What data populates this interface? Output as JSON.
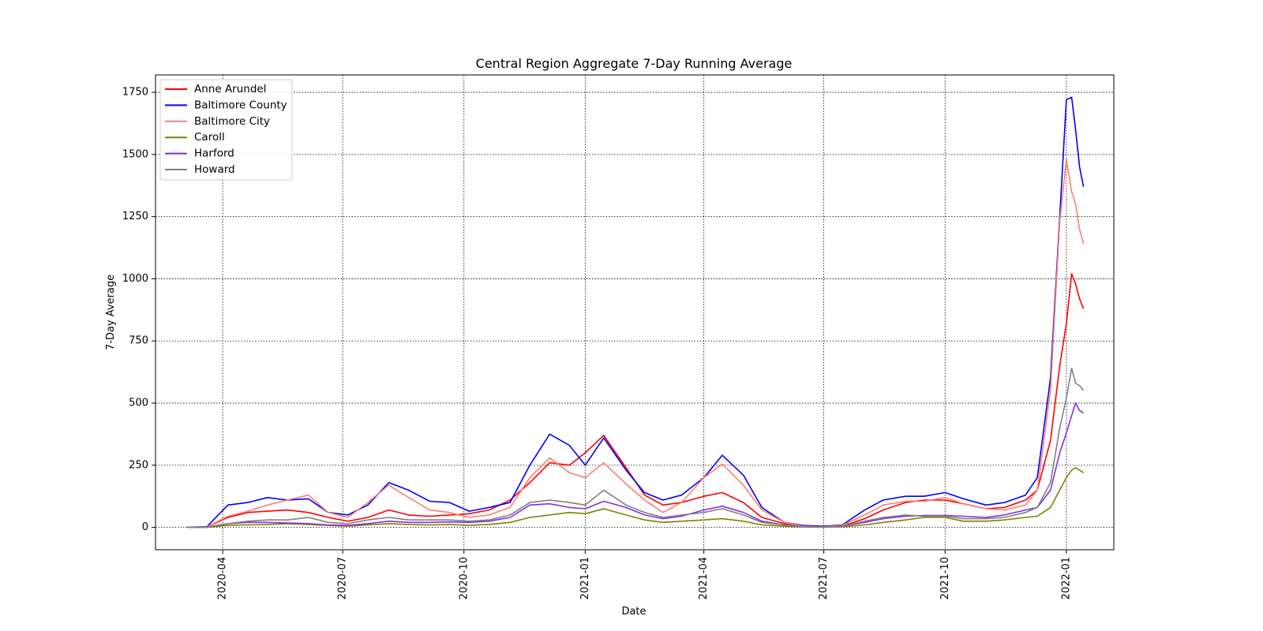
{
  "chart_data": {
    "type": "line",
    "title": "Central Region Aggregate 7-Day Running Average",
    "xlabel": "Date",
    "ylabel": "7-Day Average",
    "x_ticks": [
      "2020-04",
      "2020-07",
      "2020-10",
      "2021-01",
      "2021-04",
      "2021-07",
      "2021-10",
      "2022-01"
    ],
    "y_ticks": [
      0,
      250,
      500,
      750,
      1000,
      1250,
      1500,
      1750
    ],
    "xlim": [
      "2020-02-10",
      "2022-02-06"
    ],
    "ylim": [
      -90,
      1820
    ],
    "grid": true,
    "legend_position": "top-left",
    "x": [
      "2020-03-05",
      "2020-03-20",
      "2020-04-05",
      "2020-04-20",
      "2020-05-05",
      "2020-05-20",
      "2020-06-05",
      "2020-06-20",
      "2020-07-05",
      "2020-07-20",
      "2020-08-05",
      "2020-08-20",
      "2020-09-05",
      "2020-09-20",
      "2020-10-05",
      "2020-10-20",
      "2020-11-05",
      "2020-11-20",
      "2020-12-05",
      "2020-12-20",
      "2021-01-01",
      "2021-01-15",
      "2021-02-01",
      "2021-02-15",
      "2021-03-01",
      "2021-03-15",
      "2021-04-01",
      "2021-04-15",
      "2021-05-01",
      "2021-05-15",
      "2021-06-01",
      "2021-06-15",
      "2021-07-01",
      "2021-07-15",
      "2021-08-01",
      "2021-08-15",
      "2021-09-01",
      "2021-09-15",
      "2021-10-01",
      "2021-10-15",
      "2021-11-01",
      "2021-11-15",
      "2021-12-01",
      "2021-12-10",
      "2021-12-20",
      "2021-12-27",
      "2022-01-01",
      "2022-01-05",
      "2022-01-08",
      "2022-01-11",
      "2022-01-14"
    ],
    "series": [
      {
        "name": "Anne Arundel",
        "color": "#ff0000",
        "values": [
          0,
          2,
          40,
          60,
          65,
          70,
          60,
          40,
          25,
          40,
          70,
          50,
          45,
          50,
          55,
          70,
          110,
          180,
          260,
          250,
          300,
          370,
          240,
          130,
          90,
          100,
          125,
          140,
          100,
          40,
          15,
          5,
          3,
          5,
          35,
          70,
          100,
          110,
          110,
          95,
          75,
          80,
          110,
          150,
          350,
          650,
          820,
          1020,
          980,
          920,
          880
        ]
      },
      {
        "name": "Baltimore County",
        "color": "#0000ff",
        "values": [
          0,
          3,
          90,
          100,
          120,
          110,
          115,
          60,
          50,
          90,
          180,
          150,
          105,
          100,
          65,
          80,
          100,
          250,
          375,
          330,
          250,
          360,
          230,
          140,
          110,
          130,
          200,
          290,
          210,
          80,
          20,
          8,
          5,
          10,
          70,
          110,
          125,
          125,
          140,
          115,
          90,
          100,
          130,
          200,
          600,
          1250,
          1720,
          1730,
          1600,
          1450,
          1370
        ]
      },
      {
        "name": "Baltimore City",
        "color": "#fa8072",
        "values": [
          0,
          2,
          45,
          65,
          90,
          110,
          130,
          60,
          40,
          100,
          170,
          120,
          70,
          60,
          40,
          50,
          80,
          200,
          280,
          220,
          200,
          260,
          175,
          110,
          60,
          100,
          200,
          255,
          170,
          70,
          20,
          5,
          3,
          8,
          50,
          90,
          105,
          105,
          120,
          95,
          75,
          70,
          90,
          150,
          550,
          1230,
          1480,
          1350,
          1300,
          1200,
          1140
        ]
      },
      {
        "name": "Caroll",
        "color": "#808000",
        "values": [
          0,
          0,
          8,
          10,
          12,
          15,
          12,
          8,
          5,
          10,
          15,
          12,
          10,
          12,
          8,
          12,
          20,
          40,
          50,
          60,
          55,
          75,
          50,
          30,
          20,
          25,
          30,
          35,
          25,
          10,
          5,
          2,
          1,
          2,
          10,
          20,
          30,
          40,
          40,
          25,
          25,
          30,
          40,
          45,
          80,
          150,
          200,
          230,
          240,
          230,
          220
        ]
      },
      {
        "name": "Harford",
        "color": "#8a2be2",
        "values": [
          0,
          1,
          15,
          20,
          20,
          18,
          15,
          10,
          8,
          15,
          25,
          20,
          20,
          22,
          20,
          25,
          40,
          90,
          95,
          80,
          75,
          105,
          80,
          50,
          35,
          45,
          70,
          85,
          60,
          25,
          10,
          3,
          2,
          5,
          20,
          35,
          45,
          48,
          48,
          45,
          40,
          50,
          70,
          80,
          150,
          300,
          380,
          450,
          500,
          470,
          460
        ]
      },
      {
        "name": "Howard",
        "color": "#808080",
        "values": [
          0,
          1,
          15,
          25,
          30,
          30,
          40,
          20,
          15,
          30,
          40,
          30,
          30,
          30,
          25,
          30,
          50,
          100,
          110,
          100,
          90,
          150,
          90,
          60,
          40,
          50,
          60,
          75,
          50,
          20,
          10,
          3,
          2,
          4,
          25,
          40,
          50,
          45,
          45,
          35,
          35,
          40,
          60,
          80,
          180,
          400,
          520,
          640,
          580,
          570,
          550
        ]
      }
    ]
  }
}
